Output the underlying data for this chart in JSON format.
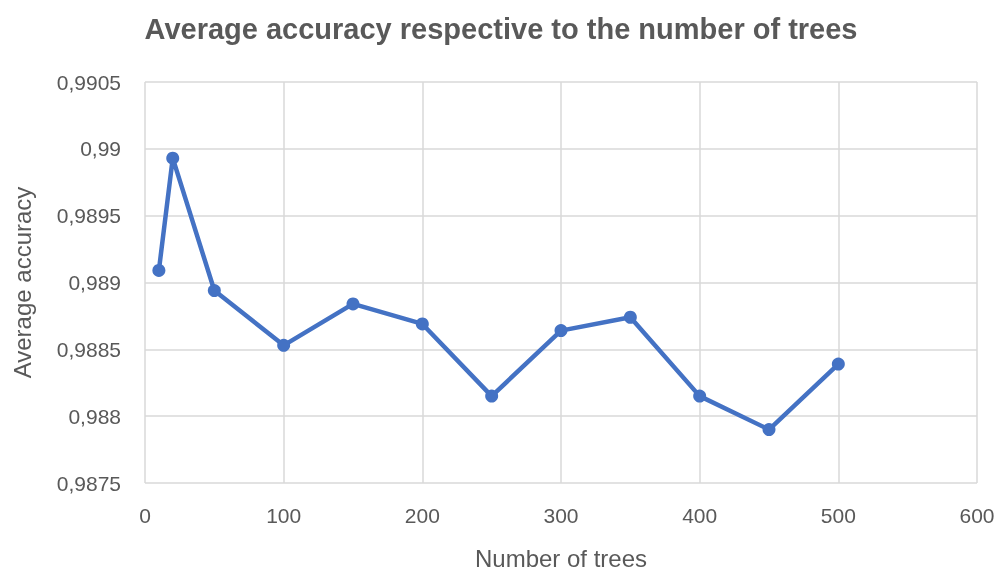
{
  "chart_data": {
    "type": "line",
    "title": "Average accuracy respective to the number of trees",
    "xlabel": "Number of trees",
    "ylabel": "Average accuracy",
    "x": [
      10,
      20,
      50,
      100,
      150,
      200,
      250,
      300,
      350,
      400,
      450,
      500
    ],
    "series": [
      {
        "color": "#4472c4",
        "values": [
          0.98909,
          0.98993,
          0.98894,
          0.98853,
          0.98884,
          0.98869,
          0.98815,
          0.98864,
          0.98874,
          0.98815,
          0.9879,
          0.98839
        ]
      }
    ],
    "xlim": [
      0,
      600
    ],
    "xticks": [
      0,
      100,
      200,
      300,
      400,
      500,
      600
    ],
    "ylim": [
      0.9875,
      0.9905
    ],
    "yticks": [
      {
        "value": 0.9875,
        "label": "0,9875"
      },
      {
        "value": 0.988,
        "label": "0,988"
      },
      {
        "value": 0.9885,
        "label": "0,9885"
      },
      {
        "value": 0.989,
        "label": "0,989"
      },
      {
        "value": 0.9895,
        "label": "0,9895"
      },
      {
        "value": 0.99,
        "label": "0,99"
      },
      {
        "value": 0.9905,
        "label": "0,9905"
      }
    ],
    "grid": true,
    "marker": "circle",
    "line_style": "solid"
  }
}
